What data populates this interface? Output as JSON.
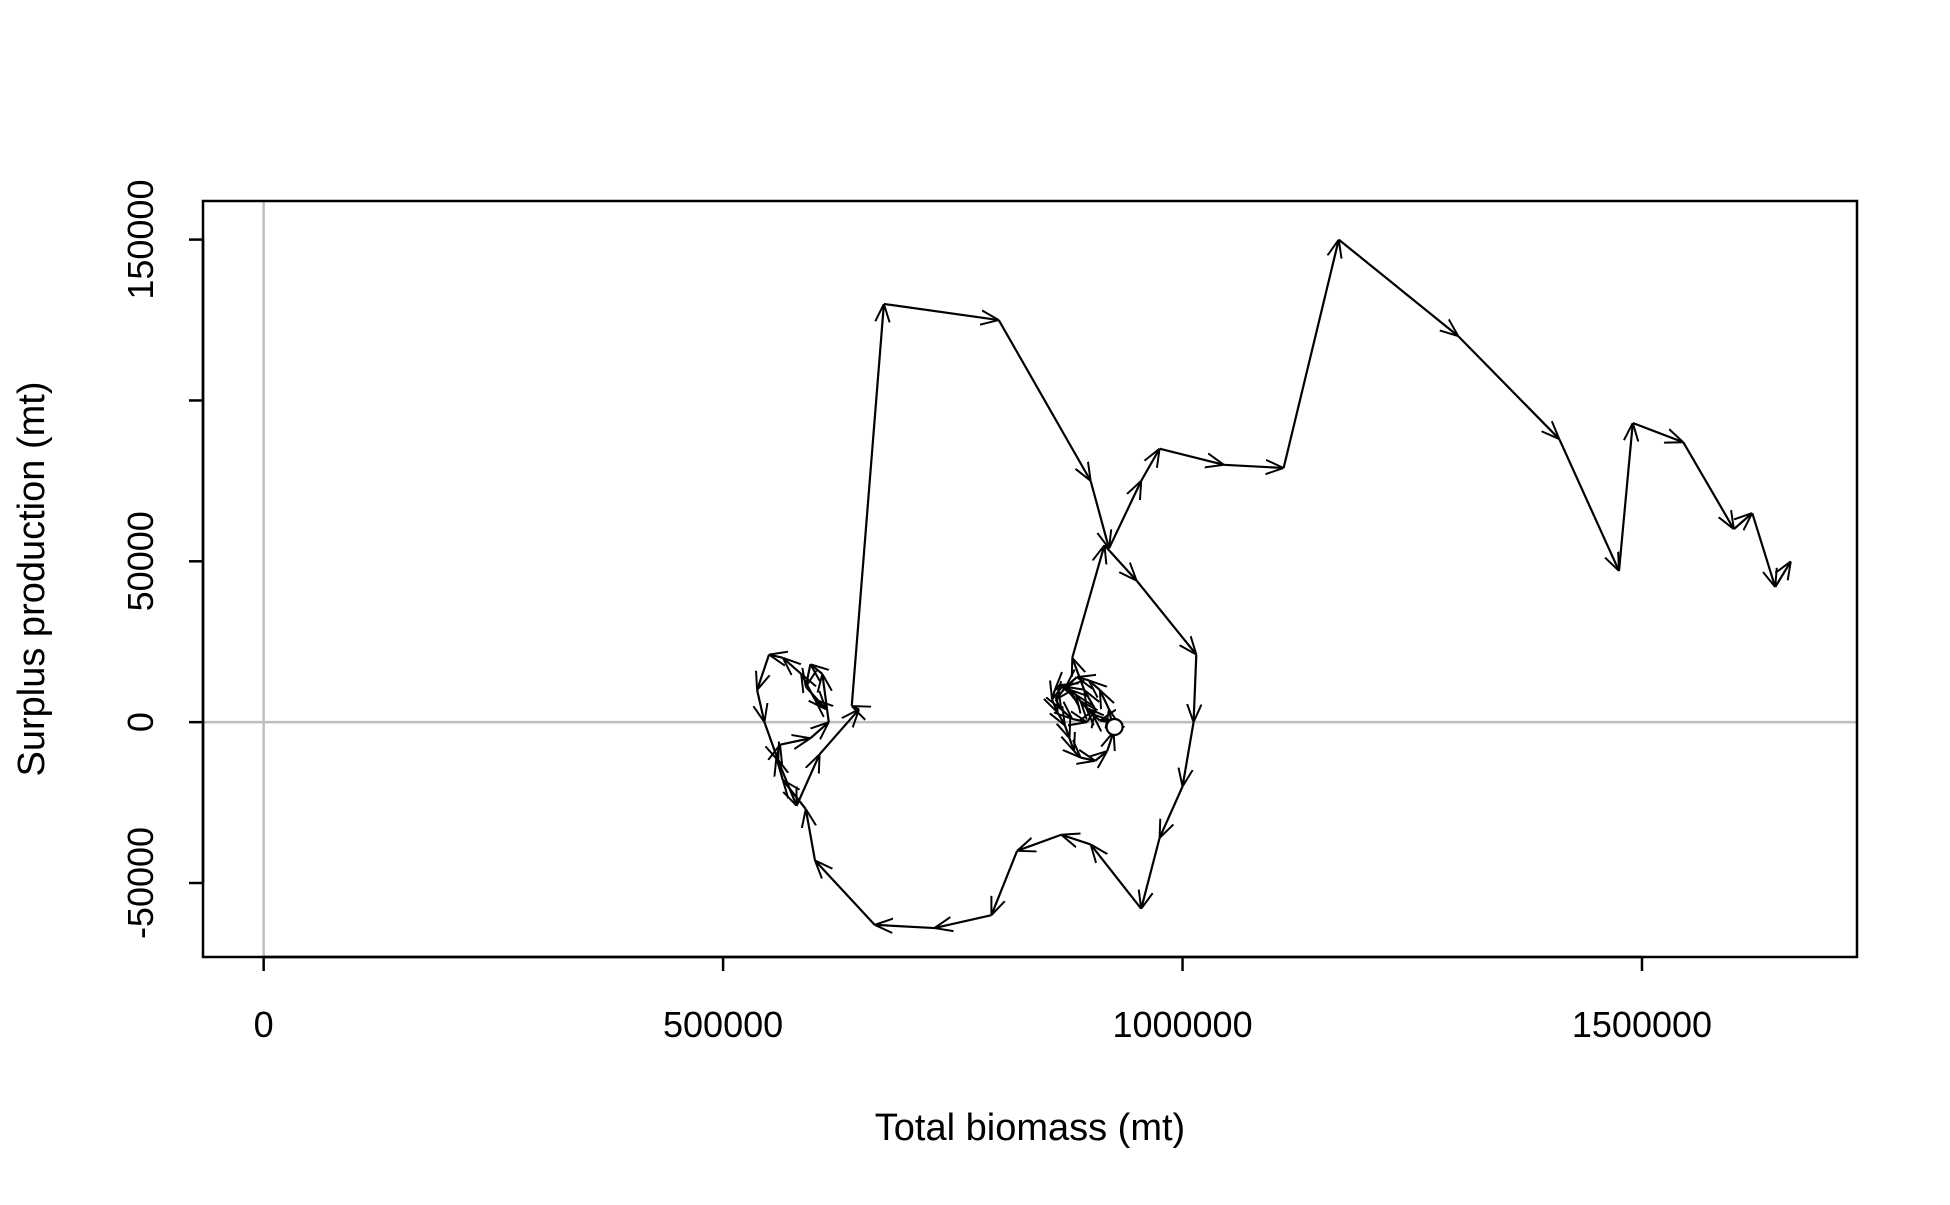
{
  "chart_data": {
    "type": "line",
    "title": "",
    "xlabel": "Total biomass (mt)",
    "ylabel": "Surplus production (mt)",
    "xlim": [
      -66000,
      1734000
    ],
    "ylim": [
      -73000,
      162000
    ],
    "x_ticks": [
      0,
      500000,
      1000000,
      1500000
    ],
    "x_tick_labels": [
      "0",
      "500000",
      "1000000",
      "1500000"
    ],
    "y_ticks": [
      -50000,
      0,
      50000,
      100000,
      150000
    ],
    "y_tick_labels": [
      "-50000",
      "0",
      "50000",
      "",
      "150000"
    ],
    "reference_lines": {
      "horizontal_at_y": 0,
      "vertical_at_x": 0,
      "color": "#bebebe"
    },
    "line_color": "#000000",
    "arrows": "each segment drawn as an arrow toward the next point",
    "start_marker": {
      "shape": "open circle",
      "x": 926000,
      "y": -1500
    },
    "series": [
      {
        "x": [
          926000,
          918000,
          910000,
          902000,
          895000,
          889000,
          884000,
          878000,
          872000,
          866000,
          861000,
          858000,
          864000,
          872000,
          877000,
          882000,
          889000,
          905000,
          918000,
          925000,
          920000,
          910000,
          898000,
          885000,
          873000,
          862000,
          868000,
          880000,
          896000,
          905000,
          893000,
          880000,
          915000,
          950000,
          1015000,
          1012000,
          1000000,
          975000,
          955000,
          900000,
          868000,
          820000,
          792000,
          730000,
          665000,
          600000,
          590000,
          565000,
          558000,
          562000,
          595000,
          615000,
          608000,
          595000,
          590000,
          612000,
          600000,
          585000,
          565000,
          550000,
          537000,
          545000,
          560000,
          580000,
          605000,
          648000,
          640000,
          675000,
          800000,
          900000,
          920000,
          955000,
          975000,
          1045000,
          1110000,
          1170000,
          1300000,
          1410000,
          1475000,
          1490000,
          1545000,
          1600000,
          1620000,
          1645000,
          1662000
        ],
        "y": [
          -1500,
          1000,
          500,
          2500,
          4500,
          6500,
          8500,
          10000,
          11000,
          11500,
          10000,
          7000,
          3000,
          -1000,
          -5000,
          -9000,
          -11000,
          -12000,
          -9000,
          -3000,
          4000,
          10000,
          13000,
          14000,
          11000,
          7000,
          4000,
          1000,
          0,
          4000,
          10000,
          20000,
          55000,
          44000,
          21000,
          0,
          -20000,
          -36000,
          -58000,
          -38000,
          -35000,
          -40000,
          -60000,
          -64000,
          -63000,
          -43000,
          -27000,
          -18000,
          -11000,
          -7000,
          -5000,
          0,
          15000,
          18000,
          11000,
          4000,
          7000,
          15000,
          20000,
          21000,
          10000,
          0,
          -12000,
          -26000,
          -10000,
          4000,
          5000,
          130000,
          125000,
          75000,
          54000,
          75000,
          85000,
          80000,
          79000,
          150000,
          120000,
          88000,
          47000,
          93000,
          87000,
          60000,
          65000,
          42000,
          50000
        ]
      }
    ]
  }
}
